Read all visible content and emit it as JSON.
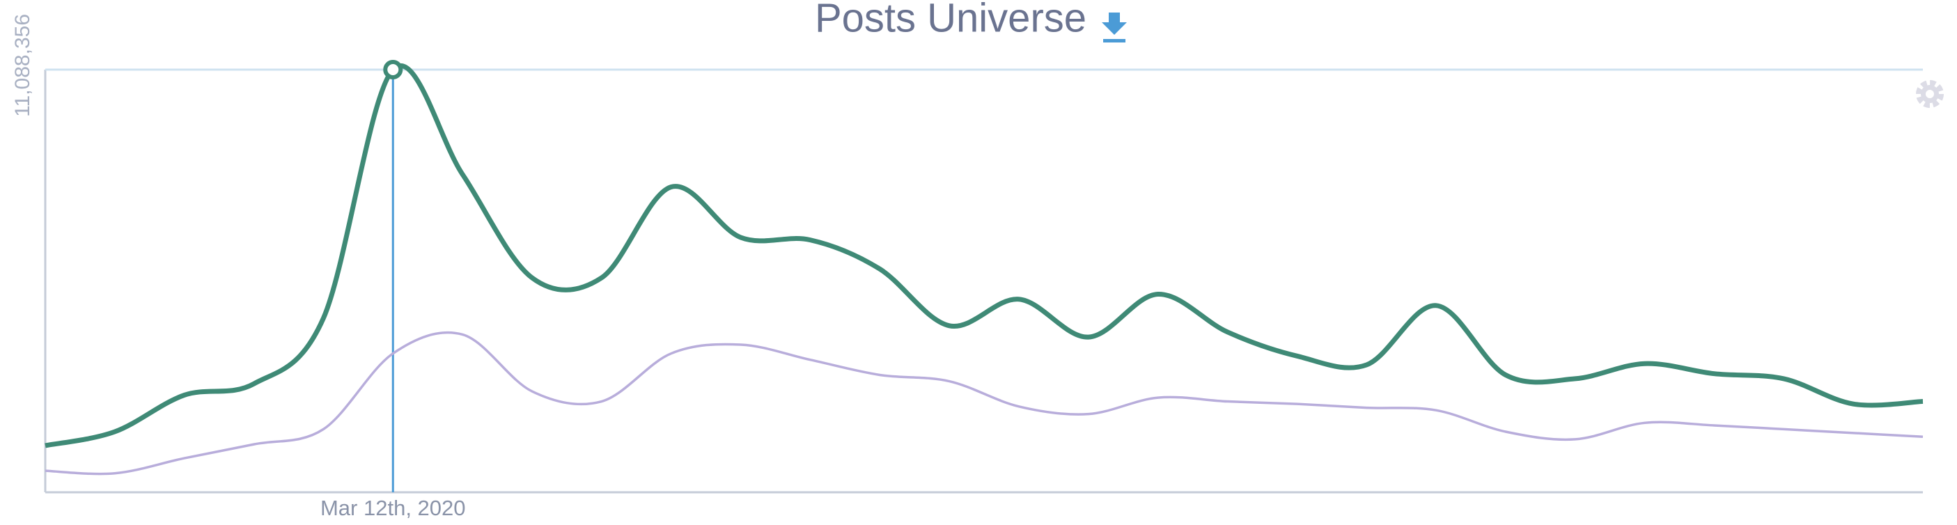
{
  "chart_data": {
    "type": "line",
    "title": "Posts Universe",
    "categories": [
      null,
      null,
      null,
      null,
      null,
      "Mar 12th, 2020",
      null,
      null,
      null,
      null,
      null,
      null,
      null,
      null,
      null,
      null,
      null,
      null,
      null,
      null,
      null,
      null,
      null,
      null,
      null,
      null,
      null,
      null
    ],
    "series": [
      {
        "color": "#3f8a76",
        "values": [
          1225000,
          1589000,
          2549000,
          2847000,
          4568000,
          11088356,
          8341000,
          5627000,
          5627000,
          8010000,
          6686000,
          6620000,
          5859000,
          4369000,
          5064000,
          4071000,
          5197000,
          4204000,
          3575000,
          3343000,
          4899000,
          3078000,
          2979000,
          3376000,
          3111000,
          2979000,
          2317000,
          2383000
        ]
      },
      {
        "color": "#b8addb",
        "values": [
          563000,
          497000,
          894000,
          1258000,
          1655000,
          3641000,
          4138000,
          2648000,
          2383000,
          3641000,
          3873000,
          3476000,
          3078000,
          2913000,
          2251000,
          2052000,
          2483000,
          2383000,
          2317000,
          2218000,
          2152000,
          1589000,
          1390000,
          1821000,
          1754000,
          1655000,
          1556000,
          1456000
        ]
      }
    ],
    "ylim": [
      0,
      11088356
    ],
    "yticks": [
      {
        "value": 11088356,
        "label": "11,088,356"
      }
    ],
    "grid": true
  }
}
